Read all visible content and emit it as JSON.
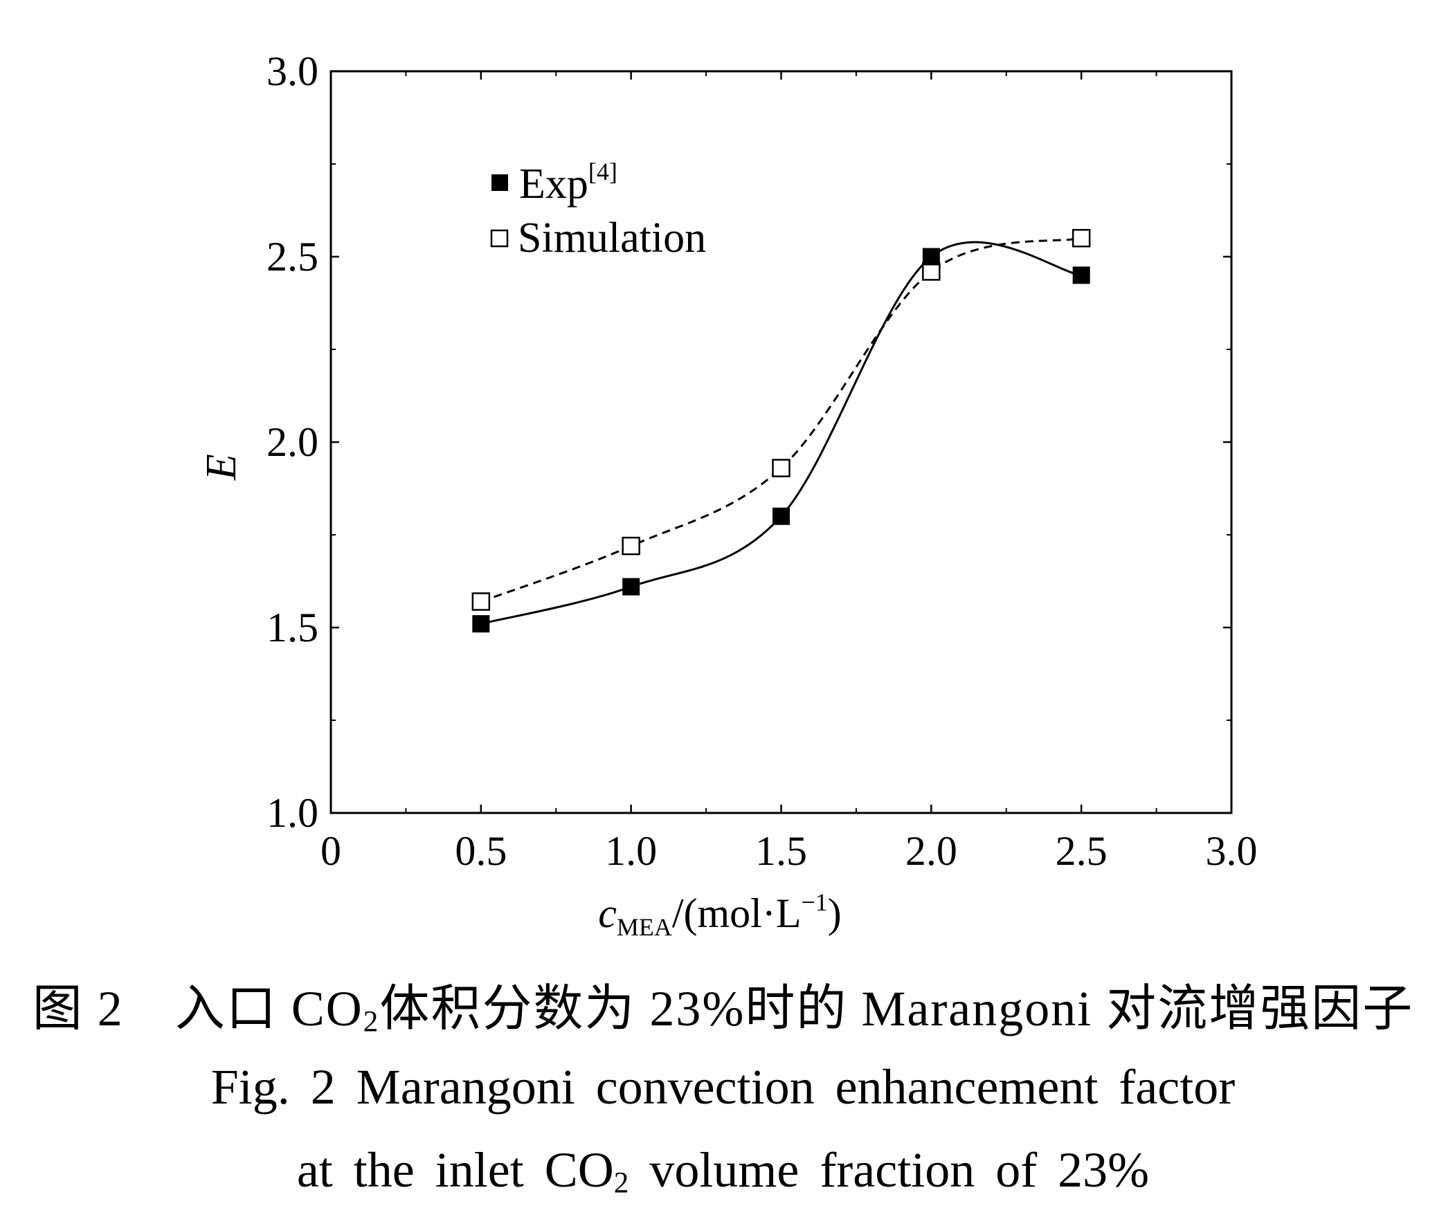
{
  "chart_data": {
    "type": "scatter",
    "xlabel": {
      "prefix": "c",
      "sub": "MEA",
      "mid": "/(mol·L",
      "sup": "−1",
      "suffix": ")"
    },
    "ylabel": "E",
    "xlim": [
      0,
      3.0
    ],
    "ylim": [
      1.0,
      3.0
    ],
    "x_ticks": [
      "0",
      "0.5",
      "1.0",
      "1.5",
      "2.0",
      "2.5",
      "3.0"
    ],
    "y_ticks": [
      "1.0",
      "1.5",
      "2.0",
      "2.5",
      "3.0"
    ],
    "legend_position": "top-left",
    "series": [
      {
        "name": "Exp",
        "name_sup": "[4]",
        "marker": "filled-square",
        "line": "solid",
        "x": [
          0.5,
          1.0,
          1.5,
          2.0,
          2.5
        ],
        "y": [
          1.51,
          1.61,
          1.8,
          2.5,
          2.45
        ]
      },
      {
        "name": "Simulation",
        "marker": "open-square",
        "line": "dashed",
        "x": [
          0.5,
          1.0,
          1.5,
          2.0,
          2.5
        ],
        "y": [
          1.57,
          1.72,
          1.93,
          2.46,
          2.55
        ]
      }
    ]
  },
  "caption": {
    "cn_prefix": "图 2　入口 CO",
    "cn_sub": "2",
    "cn_suffix": "体积分数为 23%时的 Marangoni 对流增强因子",
    "en_line1": "Fig. 2  Marangoni convection enhancement factor",
    "en_line2_prefix": "at the inlet CO",
    "en_line2_sub": "2",
    "en_line2_suffix": " volume fraction of 23%"
  }
}
